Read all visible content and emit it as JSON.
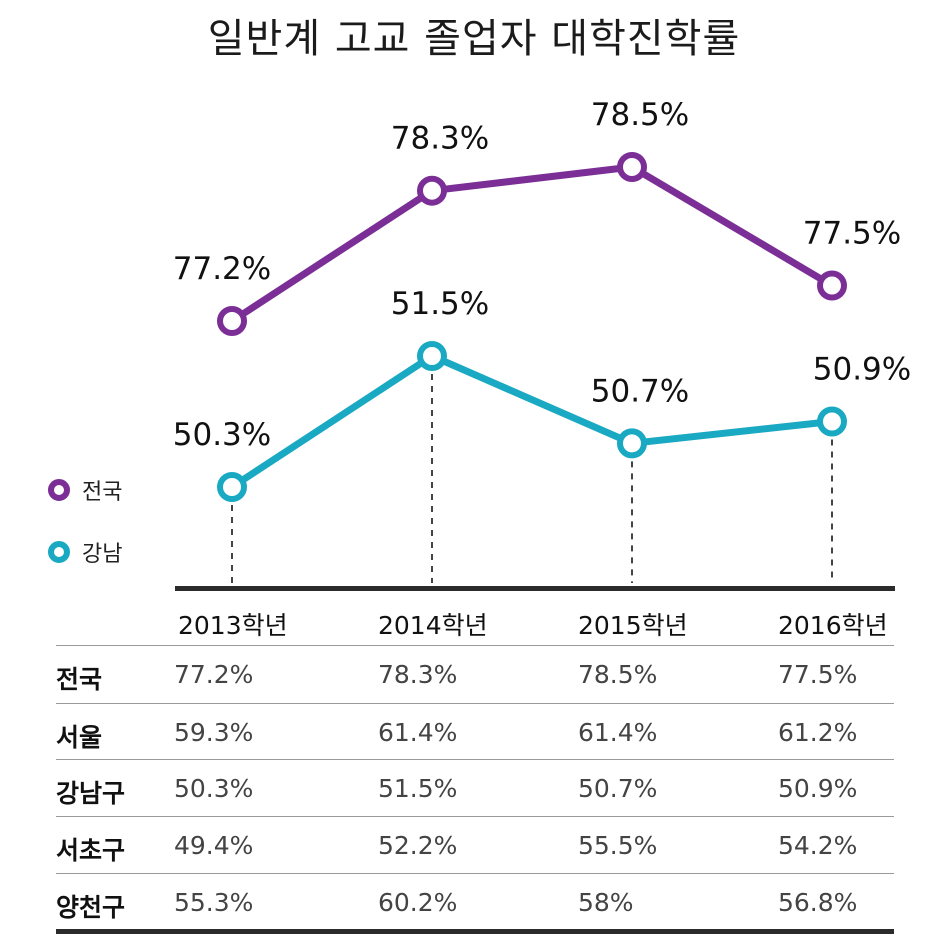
{
  "title": "일반계 고교 졸업자 대학진학률",
  "colors": {
    "national": "#7b2e96",
    "gangnam": "#1aa9c2"
  },
  "chart_data": {
    "type": "line",
    "title": "일반계 고교 졸업자 대학진학률",
    "categories": [
      "2013학년",
      "2014학년",
      "2015학년",
      "2016학년"
    ],
    "series": [
      {
        "name": "전국",
        "values": [
          77.2,
          78.3,
          78.5,
          77.5
        ],
        "labels": [
          "77.2%",
          "78.3%",
          "78.5%",
          "77.5%"
        ]
      },
      {
        "name": "강남",
        "values": [
          50.3,
          51.5,
          50.7,
          50.9
        ],
        "labels": [
          "50.3%",
          "51.5%",
          "50.7%",
          "50.9%"
        ]
      }
    ]
  },
  "legend": [
    {
      "label": "전국"
    },
    {
      "label": "강남"
    }
  ],
  "table": {
    "headers": [
      "2013학년",
      "2014학년",
      "2015학년",
      "2016학년"
    ],
    "rows": [
      {
        "name": "전국",
        "values": [
          "77.2%",
          "78.3%",
          "78.5%",
          "77.5%"
        ]
      },
      {
        "name": "서울",
        "values": [
          "59.3%",
          "61.4%",
          "61.4%",
          "61.2%"
        ]
      },
      {
        "name": "강남구",
        "values": [
          "50.3%",
          "51.5%",
          "50.7%",
          "50.9%"
        ]
      },
      {
        "name": "서초구",
        "values": [
          "49.4%",
          "52.2%",
          "55.5%",
          "54.2%"
        ]
      },
      {
        "name": "양천구",
        "values": [
          "55.3%",
          "60.2%",
          "58%",
          "56.8%"
        ]
      }
    ]
  }
}
